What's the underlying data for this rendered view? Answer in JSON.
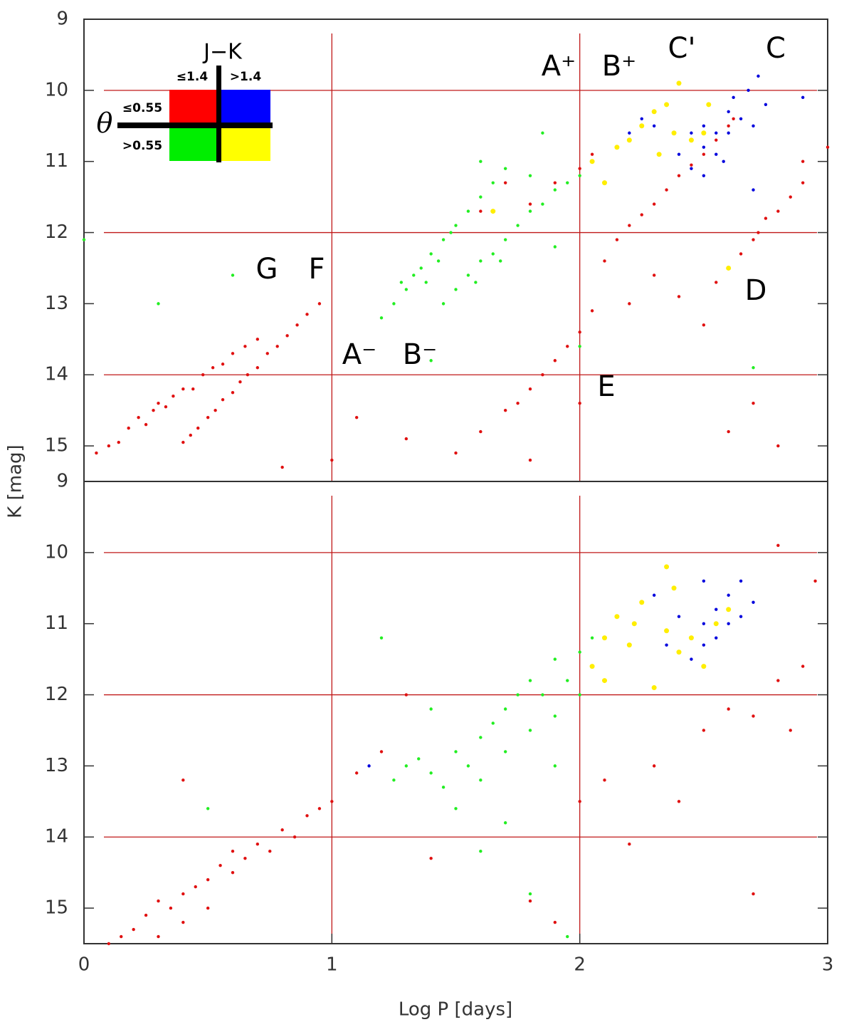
{
  "chart_data": [
    {
      "type": "scatter",
      "y_label": "K [mag]",
      "xlim": [
        0,
        3
      ],
      "ylim": [
        15.5,
        9
      ],
      "yticks": [
        9,
        10,
        11,
        12,
        13,
        14,
        15
      ],
      "hlines": [
        10,
        12,
        14
      ],
      "vlines": [
        1,
        2
      ],
      "line_color": "#c01818",
      "annotations": [
        "A⁺",
        "B⁺",
        "C'",
        "C",
        "D",
        "E",
        "F",
        "G",
        "A⁻",
        "B⁻"
      ],
      "legend": {
        "title": "J−K",
        "columns": [
          "≤1.4",
          ">1.4"
        ],
        "row_title": "θ",
        "rows": [
          "≤0.55",
          ">0.55"
        ],
        "colors": [
          [
            "#ff0000",
            "#0000ff"
          ],
          [
            "#00ee00",
            "#ffff00"
          ]
        ]
      },
      "series": [
        {
          "color": "#e01010",
          "x": [
            0.05,
            0.1,
            0.14,
            0.18,
            0.22,
            0.25,
            0.28,
            0.3,
            0.33,
            0.36,
            0.4,
            0.44,
            0.48,
            0.52,
            0.56,
            0.6,
            0.65,
            0.7,
            0.4,
            0.43,
            0.46,
            0.5,
            0.53,
            0.56,
            0.6,
            0.63,
            0.66,
            0.7,
            0.74,
            0.78,
            0.82,
            0.86,
            0.9,
            0.95,
            2.15,
            2.2,
            2.25,
            2.3,
            2.35,
            2.4,
            2.45,
            2.5,
            2.55,
            2.6,
            2.62,
            2.55,
            2.6,
            2.65,
            2.7,
            2.72,
            2.75,
            2.8,
            2.85,
            2.9,
            1.6,
            1.7,
            1.75,
            1.8,
            1.85,
            1.9,
            1.95,
            2.0,
            2.05,
            1.6,
            1.7,
            1.8,
            1.9,
            2.0,
            2.05,
            1.1,
            1.3,
            1.5,
            2.2,
            2.3,
            2.4,
            2.1,
            2.5,
            2.9,
            3.0,
            0.8,
            1.0,
            2.6,
            2.8,
            1.8,
            2.0,
            2.7
          ],
          "values": [
            15.1,
            15.0,
            14.95,
            14.75,
            14.6,
            14.7,
            14.5,
            14.4,
            14.45,
            14.3,
            14.2,
            14.2,
            14.0,
            13.9,
            13.85,
            13.7,
            13.6,
            13.5,
            14.95,
            14.85,
            14.75,
            14.6,
            14.5,
            14.35,
            14.25,
            14.1,
            14.0,
            13.9,
            13.7,
            13.6,
            13.45,
            13.3,
            13.15,
            13.0,
            12.1,
            11.9,
            11.75,
            11.6,
            11.4,
            11.2,
            11.05,
            10.9,
            10.7,
            10.5,
            10.4,
            12.7,
            12.5,
            12.3,
            12.1,
            12.0,
            11.8,
            11.7,
            11.5,
            11.3,
            14.8,
            14.5,
            14.4,
            14.2,
            14.0,
            13.8,
            13.6,
            13.4,
            13.1,
            11.7,
            11.3,
            11.6,
            11.3,
            11.1,
            10.9,
            14.6,
            14.9,
            15.1,
            13.0,
            12.6,
            12.9,
            12.4,
            13.3,
            11.0,
            10.8,
            15.3,
            15.2,
            14.8,
            15.0,
            15.2,
            14.4,
            14.4
          ]
        },
        {
          "color": "#22ee22",
          "x": [
            1.2,
            1.25,
            1.3,
            1.33,
            1.36,
            1.4,
            1.43,
            1.45,
            1.48,
            1.5,
            1.55,
            1.6,
            1.65,
            1.7,
            1.28,
            1.38,
            1.45,
            1.5,
            1.55,
            1.6,
            1.65,
            1.7,
            1.75,
            1.8,
            1.85,
            1.9,
            1.95,
            2.0,
            1.58,
            1.68,
            0.3,
            0.6,
            1.4,
            1.9,
            2.0,
            2.7,
            0.0,
            1.6,
            1.8,
            1.85
          ],
          "values": [
            13.2,
            13.0,
            12.8,
            12.6,
            12.5,
            12.3,
            12.4,
            12.1,
            12.0,
            11.9,
            11.7,
            11.5,
            11.3,
            11.1,
            12.7,
            12.7,
            13.0,
            12.8,
            12.6,
            12.4,
            12.3,
            12.1,
            11.9,
            11.7,
            11.6,
            11.4,
            11.3,
            11.2,
            12.7,
            12.4,
            13.0,
            12.6,
            13.8,
            12.2,
            13.6,
            13.9,
            12.1,
            11.0,
            11.2,
            10.6
          ]
        },
        {
          "color": "#0000dd",
          "x": [
            2.2,
            2.25,
            2.3,
            2.4,
            2.45,
            2.5,
            2.5,
            2.55,
            2.55,
            2.6,
            2.6,
            2.62,
            2.65,
            2.68,
            2.7,
            2.72,
            2.75,
            2.5,
            2.58,
            2.45,
            2.7,
            2.9
          ],
          "values": [
            10.6,
            10.4,
            10.5,
            10.9,
            10.6,
            10.8,
            10.5,
            10.6,
            10.9,
            10.3,
            10.6,
            10.1,
            10.4,
            10.0,
            10.5,
            9.8,
            10.2,
            11.2,
            11.0,
            11.1,
            11.4,
            10.1
          ]
        },
        {
          "color": "#ffee00",
          "x": [
            2.05,
            2.1,
            2.15,
            2.2,
            2.25,
            2.3,
            2.32,
            2.35,
            2.38,
            2.4,
            2.45,
            2.5,
            2.52,
            1.65,
            2.6
          ],
          "values": [
            11.0,
            11.3,
            10.8,
            10.7,
            10.5,
            10.3,
            10.9,
            10.2,
            10.6,
            9.9,
            10.7,
            10.6,
            10.2,
            11.7,
            12.5
          ]
        }
      ]
    },
    {
      "type": "scatter",
      "x_label": "Log P [days]",
      "xlim": [
        0,
        3
      ],
      "ylim": [
        15.5,
        9
      ],
      "xticks": [
        0,
        1,
        2,
        3
      ],
      "yticks": [
        9,
        10,
        11,
        12,
        13,
        14,
        15
      ],
      "hlines": [
        10,
        12,
        14
      ],
      "vlines": [
        1,
        2
      ],
      "line_color": "#c01818",
      "series": [
        {
          "color": "#e01010",
          "x": [
            0.15,
            0.2,
            0.25,
            0.3,
            0.3,
            0.35,
            0.4,
            0.4,
            0.45,
            0.5,
            0.5,
            0.55,
            0.6,
            0.6,
            0.65,
            0.7,
            0.75,
            0.8,
            0.85,
            0.9,
            0.95,
            1.0,
            1.1,
            1.2,
            0.1,
            0.4,
            1.4,
            1.8,
            2.0,
            2.1,
            2.2,
            2.3,
            2.5,
            2.6,
            2.7,
            2.8,
            2.85,
            2.9,
            2.4,
            2.7,
            1.9,
            2.95,
            2.8,
            1.3
          ],
          "values": [
            15.4,
            15.3,
            15.1,
            15.4,
            14.9,
            15.0,
            14.8,
            15.2,
            14.7,
            14.6,
            15.0,
            14.4,
            14.5,
            14.2,
            14.3,
            14.1,
            14.2,
            13.9,
            14.0,
            13.7,
            13.6,
            13.5,
            13.1,
            12.8,
            15.5,
            13.2,
            14.3,
            14.9,
            13.5,
            13.2,
            14.1,
            13.0,
            12.5,
            12.2,
            12.3,
            11.8,
            12.5,
            11.6,
            13.5,
            14.8,
            15.2,
            10.4,
            9.9,
            12.0
          ]
        },
        {
          "color": "#22ee22",
          "x": [
            1.25,
            1.3,
            1.35,
            1.4,
            1.45,
            1.5,
            1.55,
            1.6,
            1.6,
            1.65,
            1.7,
            1.7,
            1.75,
            1.8,
            1.8,
            1.85,
            1.9,
            1.9,
            1.95,
            2.0,
            2.0,
            2.05,
            1.5,
            1.7,
            1.6,
            1.9,
            1.4,
            1.2,
            0.5,
            1.8,
            1.95
          ],
          "values": [
            13.2,
            13.0,
            12.9,
            13.1,
            13.3,
            12.8,
            13.0,
            13.2,
            12.6,
            12.4,
            12.2,
            12.8,
            12.0,
            12.5,
            11.8,
            12.0,
            11.5,
            12.3,
            11.8,
            11.4,
            12.0,
            11.2,
            13.6,
            13.8,
            14.2,
            13.0,
            12.2,
            11.2,
            13.6,
            14.8,
            15.4
          ]
        },
        {
          "color": "#0000dd",
          "x": [
            2.35,
            2.4,
            2.45,
            2.5,
            2.5,
            2.55,
            2.55,
            2.6,
            2.6,
            2.65,
            2.65,
            2.7,
            2.5,
            2.3,
            1.15
          ],
          "values": [
            11.3,
            10.9,
            11.5,
            11.0,
            11.3,
            10.8,
            11.2,
            10.6,
            11.0,
            10.4,
            10.9,
            10.7,
            10.4,
            10.6,
            13.0
          ]
        },
        {
          "color": "#ffee00",
          "x": [
            2.05,
            2.1,
            2.1,
            2.15,
            2.2,
            2.22,
            2.25,
            2.3,
            2.35,
            2.38,
            2.4,
            2.45,
            2.5,
            2.55,
            2.6,
            2.35
          ],
          "values": [
            11.6,
            11.2,
            11.8,
            10.9,
            11.3,
            11.0,
            10.7,
            11.9,
            11.1,
            10.5,
            11.4,
            11.2,
            11.6,
            11.0,
            10.8,
            10.2
          ]
        }
      ]
    }
  ]
}
